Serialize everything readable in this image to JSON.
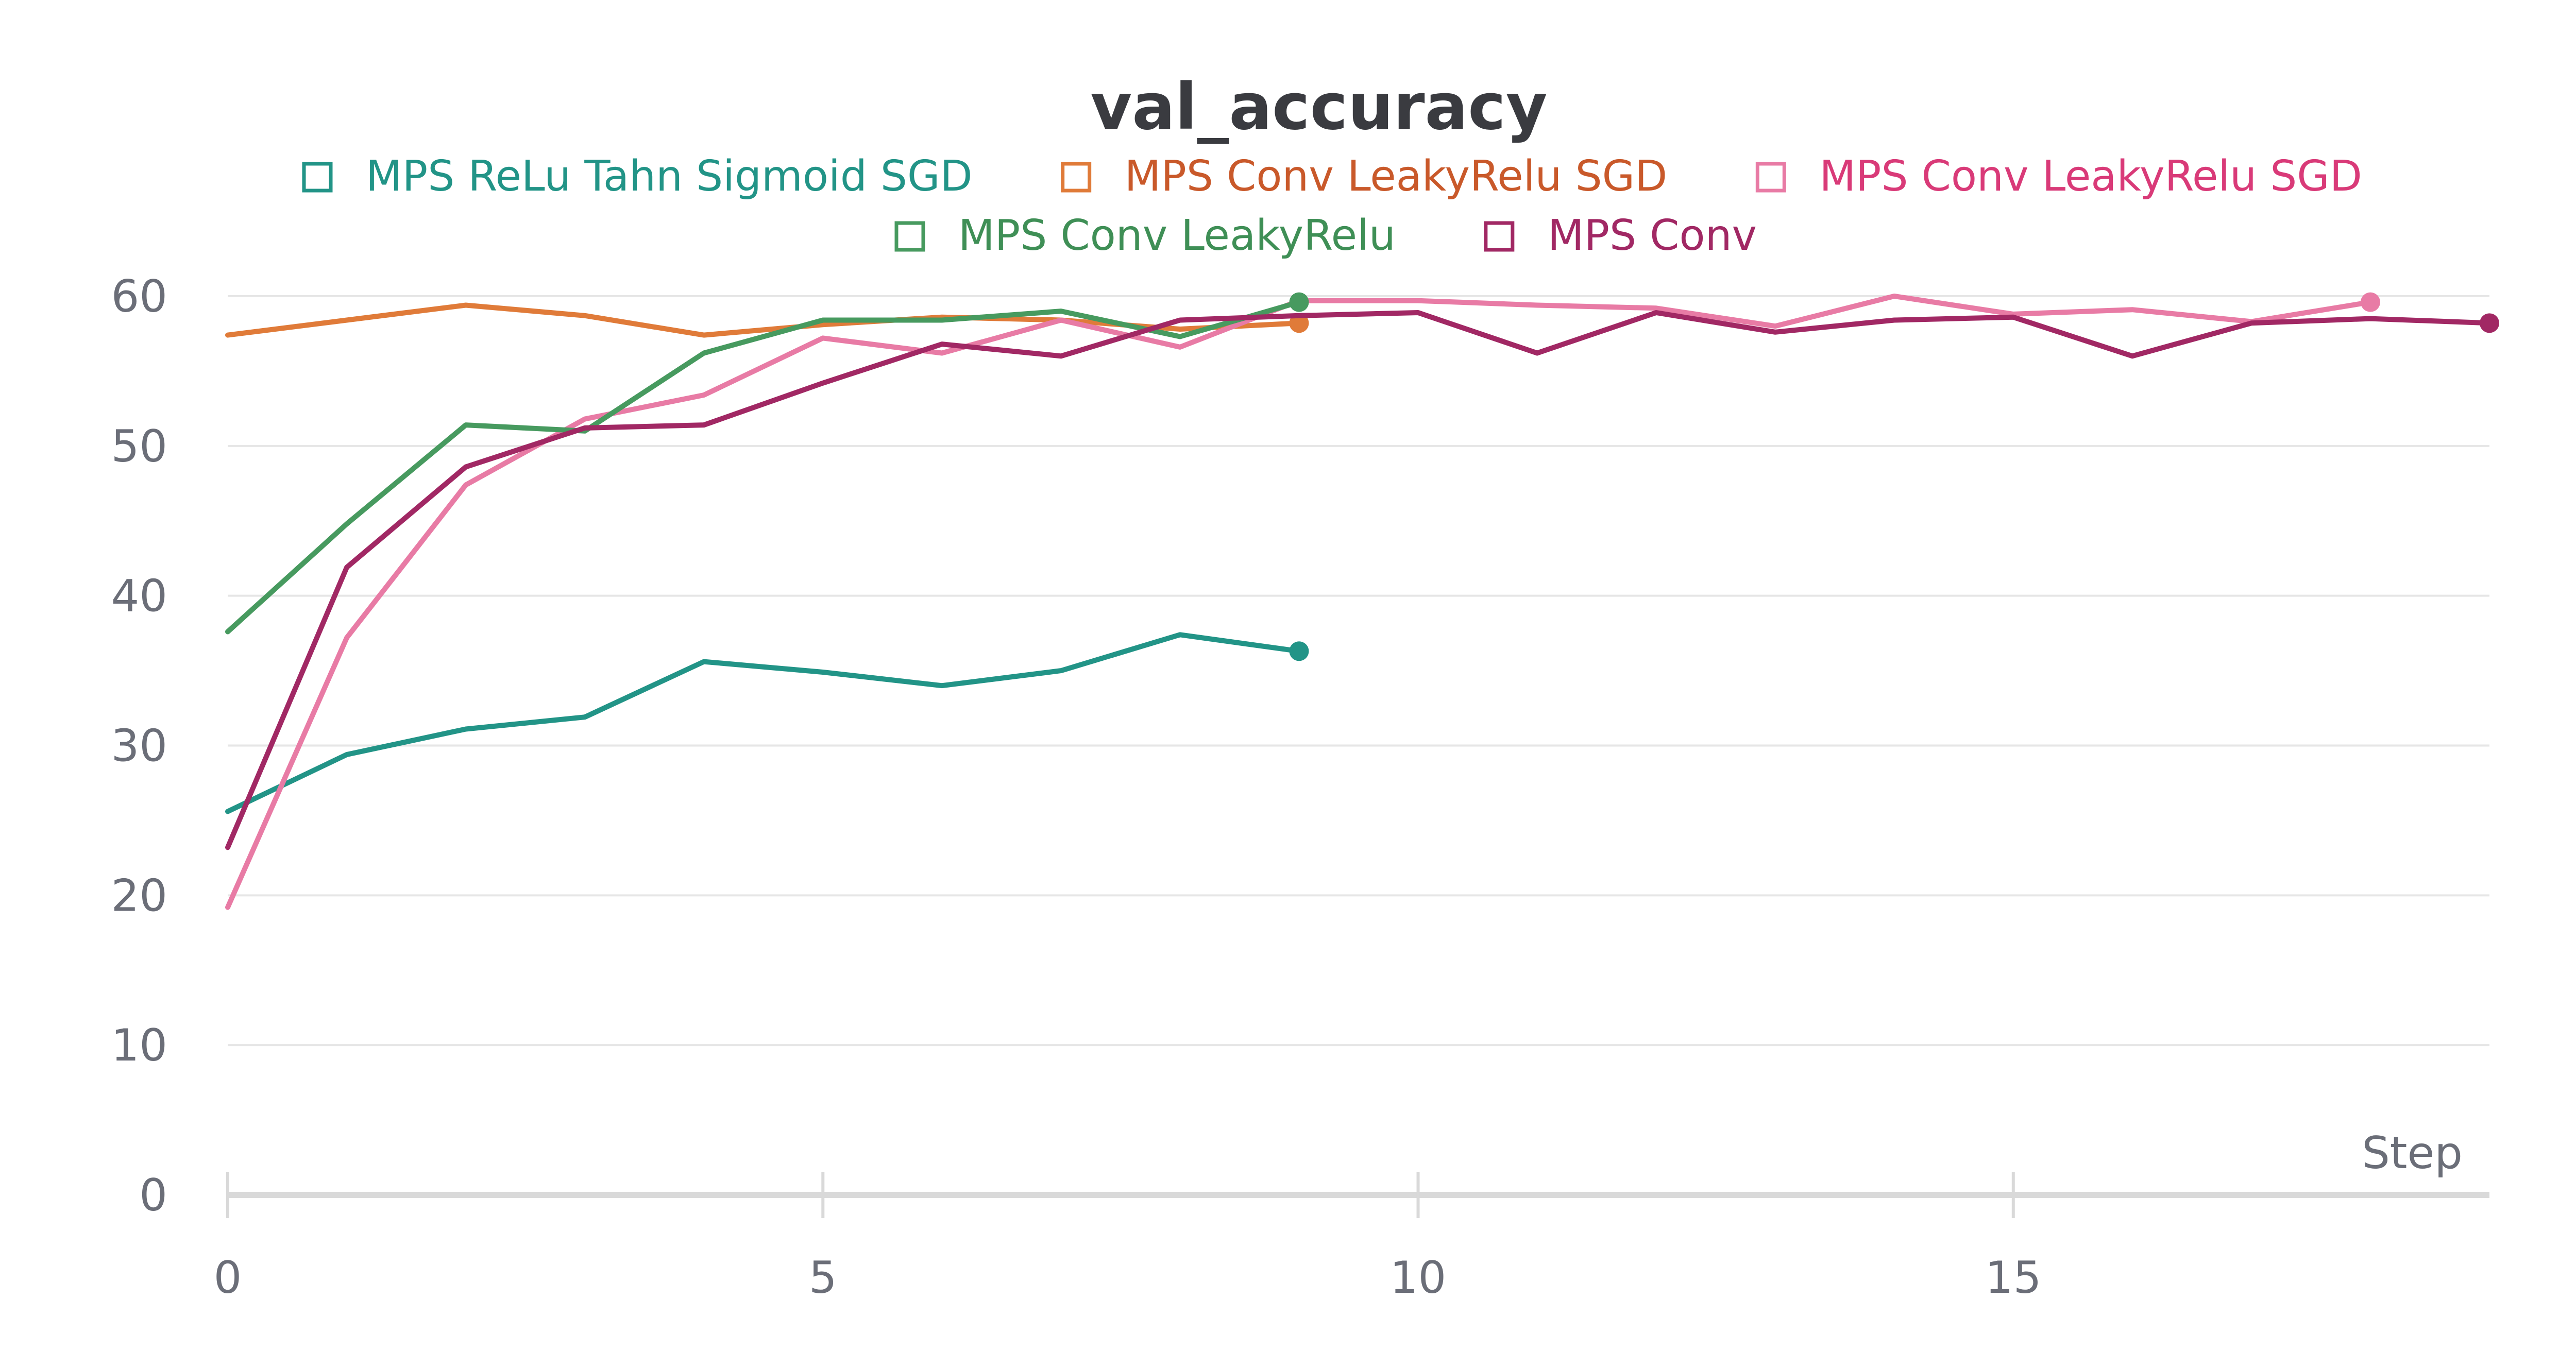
{
  "chart_data": {
    "type": "line",
    "title": "val_accuracy",
    "xlabel": "Step",
    "ylabel": "",
    "xlim": [
      0,
      19
    ],
    "ylim": [
      0,
      60
    ],
    "x_ticks": [
      0,
      5,
      10,
      15
    ],
    "y_ticks": [
      0,
      10,
      20,
      30,
      40,
      50,
      60
    ],
    "grid": "horizontal",
    "legend_position": "top-center",
    "series": [
      {
        "name": "MPS ReLu Tahn Sigmoid SGD",
        "color": "#229487",
        "x": [
          0,
          1,
          2,
          3,
          4,
          5,
          6,
          7,
          8,
          9
        ],
        "y": [
          25.6,
          29.4,
          31.1,
          31.9,
          35.6,
          34.9,
          34.0,
          35.0,
          37.4,
          36.3
        ]
      },
      {
        "name": "MPS Conv LeakyRelu SGD",
        "color": "#e07b39",
        "x": [
          0,
          1,
          2,
          3,
          4,
          5,
          6,
          7,
          8,
          9
        ],
        "y": [
          57.4,
          58.4,
          59.4,
          58.7,
          57.4,
          58.1,
          58.6,
          58.4,
          57.8,
          58.2
        ]
      },
      {
        "name": "MPS Conv LeakyRelu SGD",
        "color": "#e87ba5",
        "x": [
          0,
          1,
          2,
          3,
          4,
          5,
          6,
          7,
          8,
          9,
          10,
          11,
          12,
          13,
          14,
          15,
          16,
          17,
          18
        ],
        "y": [
          19.2,
          37.2,
          47.4,
          51.8,
          53.4,
          57.2,
          56.2,
          58.4,
          56.6,
          59.7,
          59.7,
          59.4,
          59.2,
          58.0,
          60.0,
          58.8,
          59.1,
          58.3,
          59.6
        ]
      },
      {
        "name": "MPS Conv LeakyRelu",
        "color": "#479a5f",
        "x": [
          0,
          1,
          2,
          3,
          4,
          5,
          6,
          7,
          8,
          9
        ],
        "y": [
          37.6,
          44.8,
          51.4,
          51.0,
          56.2,
          58.4,
          58.4,
          59.0,
          57.3,
          59.6
        ]
      },
      {
        "name": "MPS Conv",
        "color": "#a12864",
        "x": [
          0,
          1,
          2,
          3,
          4,
          5,
          6,
          7,
          8,
          9,
          10,
          11,
          12,
          13,
          14,
          15,
          16,
          17,
          18,
          19
        ],
        "y": [
          23.2,
          41.9,
          48.6,
          51.2,
          51.4,
          54.2,
          56.8,
          56.0,
          58.4,
          58.7,
          58.9,
          56.2,
          58.9,
          57.6,
          58.4,
          58.6,
          56.0,
          58.2,
          58.5,
          58.2
        ]
      }
    ]
  },
  "legend": {
    "row1": [
      {
        "label": "MPS ReLu Tahn Sigmoid SGD",
        "color": "#229487",
        "text_color": "#229487"
      },
      {
        "label": "MPS Conv LeakyRelu SGD",
        "color": "#e07b39",
        "text_color": "#c9592a"
      },
      {
        "label": "MPS Conv LeakyRelu SGD",
        "color": "#e87ba5",
        "text_color": "#d93a78"
      }
    ],
    "row2": [
      {
        "label": "MPS Conv LeakyRelu",
        "color": "#479a5f",
        "text_color": "#3f8f56"
      },
      {
        "label": "MPS Conv",
        "color": "#a12864",
        "text_color": "#a12864"
      }
    ]
  },
  "colors": {
    "grid": "#e6e6e6",
    "axis": "#d9d9d9",
    "text": "#6b6e78",
    "title": "#3a3b40"
  }
}
